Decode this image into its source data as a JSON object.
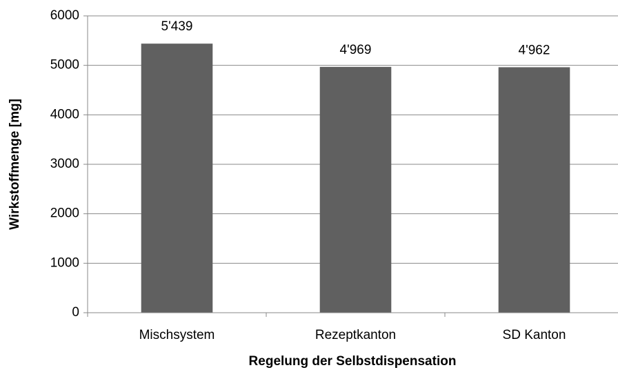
{
  "chart_data": {
    "type": "bar",
    "x_label": "Regelung der Selbstdispensation",
    "y_label": "Wirkstoffmenge [mg]",
    "categories": [
      "Mischsystem",
      "Rezeptkanton",
      "SD Kanton"
    ],
    "values": [
      5439,
      4969,
      4962
    ],
    "value_labels": [
      "5'439",
      "4'969",
      "4'962"
    ],
    "color": "#606060",
    "ylim": [
      0,
      6000
    ],
    "yticks": [
      0,
      1000,
      2000,
      3000,
      4000,
      5000,
      6000
    ],
    "grid": true
  }
}
